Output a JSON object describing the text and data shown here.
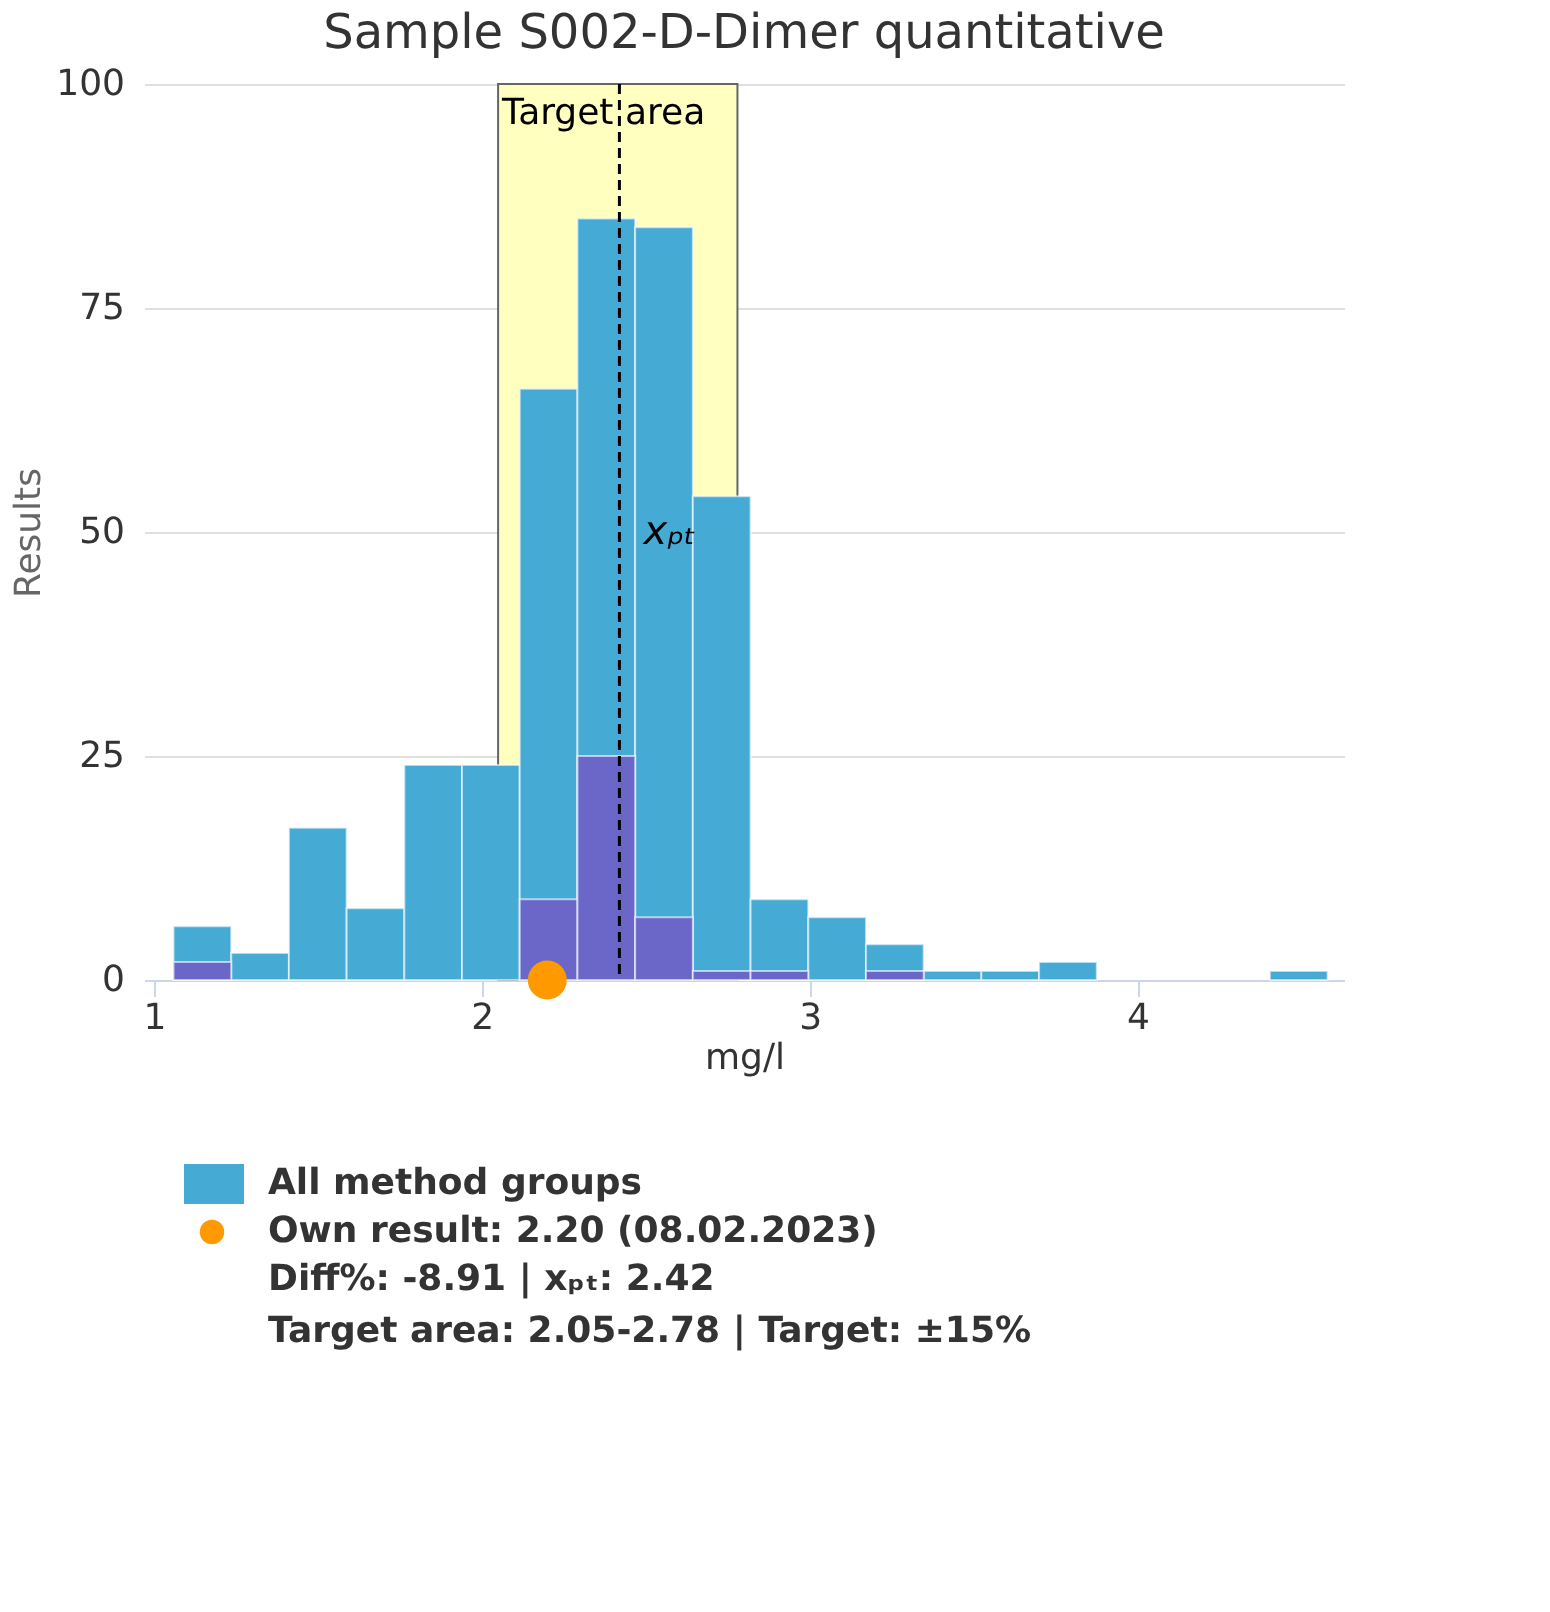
{
  "chart_data": {
    "type": "histogram",
    "title": "Sample S002-D-Dimer quantitative",
    "xlabel": "mg/l",
    "ylabel": "Results",
    "bins": [
      1.06,
      1.236,
      1.412,
      1.588,
      1.764,
      1.94,
      2.116,
      2.292,
      2.468,
      2.644,
      2.82,
      2.996,
      3.172,
      3.348,
      3.524,
      3.7,
      3.876,
      4.052,
      4.228,
      4.404,
      4.58
    ],
    "series": [
      {
        "name": "All method groups",
        "color": "#45aad4",
        "values": [
          6,
          3,
          17,
          8,
          24,
          24,
          66,
          85,
          84,
          54,
          9,
          7,
          4,
          1,
          1,
          2,
          0,
          0,
          0,
          1
        ]
      },
      {
        "color": "#6a67c9",
        "values": [
          2,
          0,
          0,
          0,
          0,
          0,
          9,
          25,
          7,
          1,
          1,
          0,
          1,
          0,
          0,
          0,
          0,
          0,
          0,
          0
        ]
      },
      {
        "type": "scatter",
        "name": "Own result: 2.20 (08.02.2023)",
        "color": "#ff9900",
        "x": [
          2.2
        ],
        "values": [
          0
        ]
      }
    ],
    "marker": "circle",
    "xlim": [
      0.97,
      4.63
    ],
    "xticks": [
      1,
      2,
      3,
      4
    ],
    "ylim": [
      0,
      100
    ],
    "yticks": [
      0,
      25,
      50,
      75,
      100
    ],
    "grid": "y",
    "bands": [
      {
        "axis": "x",
        "from": 2.05,
        "to": 2.78,
        "label": "Target area",
        "color": "#ffffc0"
      }
    ],
    "ref_lines": [
      {
        "axis": "x",
        "value": 2.42,
        "label": "xₚₜ",
        "line_style": "dashed",
        "color": "#000000"
      }
    ],
    "legend": "bottom",
    "annotations": [
      "Diff%: -8.91 | xₚₜ: 2.42",
      "Target area: 2.05-2.78 | Target: ±15%"
    ]
  }
}
